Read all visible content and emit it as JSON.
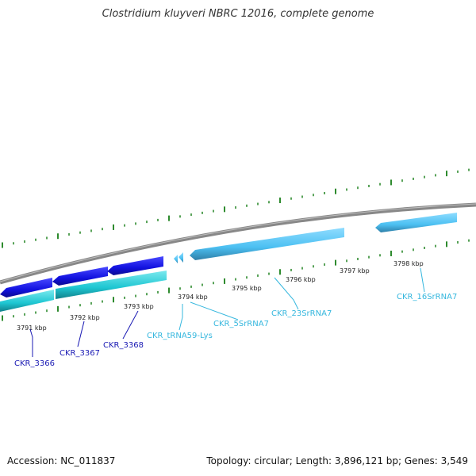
{
  "title": "Clostridium kluyveri NBRC 12016, complete genome",
  "footer": {
    "accession": "Accession: NC_011837",
    "topology": "Topology: circular; Length: 3,896,121 bp; Genes: 3,549"
  },
  "colors": {
    "backbone": "#888888",
    "cds": "#1a1ae8",
    "cds_secondary": "#1ec6d2",
    "rna": "#5bc8f5",
    "tick": "#2e8b2e",
    "cds_label": "#1a1ab4",
    "rna_label": "#35b7de"
  },
  "kbp_labels": [
    "3791 kbp",
    "3792 kbp",
    "3793 kbp",
    "3794 kbp",
    "3795 kbp",
    "3796 kbp",
    "3797 kbp",
    "3798 kbp"
  ],
  "genes": [
    {
      "name": "CKR_3366",
      "type": "cds"
    },
    {
      "name": "CKR_3367",
      "type": "cds"
    },
    {
      "name": "CKR_3368",
      "type": "cds"
    },
    {
      "name": "CKR_tRNA59-Lys",
      "type": "rna"
    },
    {
      "name": "CKR_5SrRNA7",
      "type": "rna"
    },
    {
      "name": "CKR_23SrRNA7",
      "type": "rna"
    },
    {
      "name": "CKR_16SrRNA7",
      "type": "rna"
    }
  ]
}
